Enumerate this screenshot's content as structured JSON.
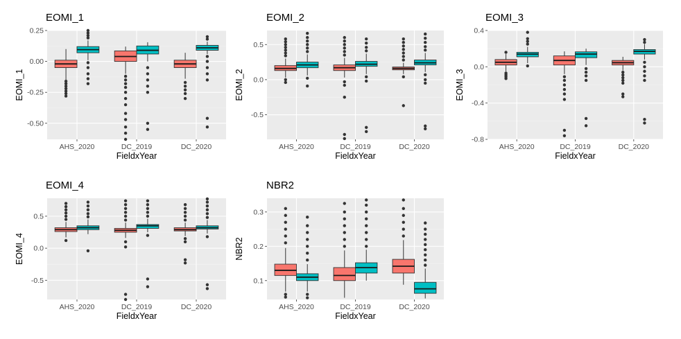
{
  "colors": {
    "panel_bg": "#ebebeb",
    "grid_major": "#ffffff",
    "grid_minor": "#f4f4f4",
    "series_1": "#f8766d",
    "series_2": "#00bfc4",
    "outline": "#333333",
    "text": "#4d4d4d",
    "title": "#000000"
  },
  "chart_data": [
    {
      "type": "boxplot",
      "title": "EOMI_1",
      "xlabel": "FieldxYear",
      "ylabel": "EOMI_1",
      "categories": [
        "AHS_2020",
        "DC_2019",
        "DC_2020"
      ],
      "ylim": [
        -0.63,
        0.25
      ],
      "yticks": [
        0.25,
        0.0,
        -0.25,
        -0.5
      ],
      "ytick_labels": [
        "0.25",
        "0.00",
        "-0.25",
        "-0.50"
      ],
      "series": [
        {
          "color": "#f8766d",
          "boxes": [
            {
              "q1": -0.05,
              "median": -0.02,
              "q3": 0.01,
              "whisker_low": -0.15,
              "whisker_high": 0.1,
              "outliers": [
                -0.28,
                -0.26,
                -0.24,
                -0.22,
                -0.2,
                -0.18,
                -0.16
              ]
            },
            {
              "q1": 0.0,
              "median": 0.04,
              "q3": 0.085,
              "whisker_low": -0.1,
              "whisker_high": 0.12,
              "outliers": [
                -0.12,
                -0.15,
                -0.18,
                -0.21,
                -0.25,
                -0.3,
                -0.35,
                -0.42,
                -0.47,
                -0.53,
                -0.58,
                -0.63
              ]
            },
            {
              "q1": -0.05,
              "median": -0.02,
              "q3": 0.01,
              "whisker_low": -0.14,
              "whisker_high": 0.07,
              "outliers": [
                -0.17,
                -0.2,
                -0.23,
                -0.26,
                -0.3
              ]
            }
          ]
        },
        {
          "color": "#00bfc4",
          "boxes": [
            {
              "q1": 0.07,
              "median": 0.095,
              "q3": 0.12,
              "whisker_low": 0.01,
              "whisker_high": 0.17,
              "outliers": [
                0.19,
                0.21,
                0.23,
                0.25,
                -0.01,
                -0.05,
                -0.1,
                -0.14,
                -0.18
              ]
            },
            {
              "q1": 0.06,
              "median": 0.09,
              "q3": 0.125,
              "whisker_low": 0.0,
              "whisker_high": 0.155,
              "outliers": [
                -0.05,
                -0.1,
                -0.15,
                -0.2,
                -0.25,
                -0.5,
                -0.55
              ]
            },
            {
              "q1": 0.09,
              "median": 0.11,
              "q3": 0.13,
              "whisker_low": 0.06,
              "whisker_high": 0.16,
              "outliers": [
                0.18,
                0.2,
                0.04,
                0.0,
                -0.05,
                -0.1,
                -0.15,
                -0.46,
                -0.53
              ]
            }
          ]
        }
      ]
    },
    {
      "type": "boxplot",
      "title": "EOMI_2",
      "xlabel": "FieldxYear",
      "ylabel": "EOMI_2",
      "categories": [
        "AHS_2020",
        "DC_2019",
        "DC_2020"
      ],
      "ylim": [
        -0.85,
        0.7
      ],
      "yticks": [
        0.5,
        0.0,
        -0.5
      ],
      "ytick_labels": [
        "0.5",
        "0.0",
        "-0.5"
      ],
      "series": [
        {
          "color": "#f8766d",
          "boxes": [
            {
              "q1": 0.13,
              "median": 0.16,
              "q3": 0.2,
              "whisker_low": 0.03,
              "whisker_high": 0.3,
              "outliers": [
                0.34,
                0.38,
                0.42,
                0.46,
                0.5,
                0.54,
                0.58,
                0.0,
                -0.04
              ]
            },
            {
              "q1": 0.13,
              "median": 0.17,
              "q3": 0.21,
              "whisker_low": 0.03,
              "whisker_high": 0.31,
              "outliers": [
                0.35,
                0.4,
                0.45,
                0.5,
                0.55,
                0.6,
                -0.03,
                -0.08,
                -0.25,
                -0.78,
                -0.84
              ]
            },
            {
              "q1": 0.14,
              "median": 0.16,
              "q3": 0.18,
              "whisker_low": 0.08,
              "whisker_high": 0.24,
              "outliers": [
                0.28,
                0.33,
                0.38,
                0.43,
                0.48,
                0.53,
                0.58,
                0.04,
                -0.37
              ]
            }
          ]
        },
        {
          "color": "#00bfc4",
          "boxes": [
            {
              "q1": 0.17,
              "median": 0.21,
              "q3": 0.25,
              "whisker_low": 0.06,
              "whisker_high": 0.36,
              "outliers": [
                0.4,
                0.45,
                0.5,
                0.55,
                0.6,
                0.66,
                0.02,
                -0.09
              ]
            },
            {
              "q1": 0.19,
              "median": 0.22,
              "q3": 0.26,
              "whisker_low": 0.08,
              "whisker_high": 0.37,
              "outliers": [
                0.41,
                0.46,
                0.52,
                0.58,
                0.04,
                -0.02,
                -0.68,
                -0.74
              ]
            },
            {
              "q1": 0.21,
              "median": 0.24,
              "q3": 0.28,
              "whisker_low": 0.11,
              "whisker_high": 0.38,
              "outliers": [
                0.42,
                0.47,
                0.53,
                0.59,
                0.65,
                0.07,
                0.0,
                -0.05,
                -0.66,
                -0.7
              ]
            }
          ]
        }
      ]
    },
    {
      "type": "boxplot",
      "title": "EOMI_3",
      "xlabel": "FieldxYear",
      "ylabel": "EOMI_3",
      "categories": [
        "AHS_2020",
        "DC_2019",
        "DC_2020"
      ],
      "ylim": [
        -0.8,
        0.4
      ],
      "yticks": [
        0.4,
        0.0,
        -0.4,
        -0.8
      ],
      "ytick_labels": [
        "0.4",
        "0.0",
        "-0.4",
        "-0.8"
      ],
      "series": [
        {
          "color": "#f8766d",
          "boxes": [
            {
              "q1": 0.02,
              "median": 0.05,
              "q3": 0.08,
              "whisker_low": -0.05,
              "whisker_high": 0.14,
              "outliers": [
                0.16,
                -0.07,
                -0.09,
                -0.11,
                -0.13
              ]
            },
            {
              "q1": 0.02,
              "median": 0.07,
              "q3": 0.12,
              "whisker_low": -0.08,
              "whisker_high": 0.17,
              "outliers": [
                -0.11,
                -0.15,
                -0.2,
                -0.25,
                -0.3,
                -0.36,
                -0.7,
                -0.76
              ]
            },
            {
              "q1": 0.02,
              "median": 0.045,
              "q3": 0.07,
              "whisker_low": -0.04,
              "whisker_high": 0.11,
              "outliers": [
                -0.06,
                -0.09,
                -0.12,
                -0.15,
                -0.18,
                -0.3,
                -0.33
              ]
            }
          ]
        },
        {
          "color": "#00bfc4",
          "boxes": [
            {
              "q1": 0.11,
              "median": 0.14,
              "q3": 0.16,
              "whisker_low": 0.04,
              "whisker_high": 0.22,
              "outliers": [
                0.25,
                0.28,
                0.31,
                0.38,
                0.01
              ]
            },
            {
              "q1": 0.1,
              "median": 0.14,
              "q3": 0.165,
              "whisker_low": 0.02,
              "whisker_high": 0.2,
              "outliers": [
                -0.02,
                -0.06,
                -0.1,
                -0.15,
                -0.57,
                -0.65
              ]
            },
            {
              "q1": 0.14,
              "median": 0.17,
              "q3": 0.19,
              "whisker_low": 0.08,
              "whisker_high": 0.25,
              "outliers": [
                0.27,
                0.3,
                0.05,
                0.0,
                -0.05,
                -0.1,
                -0.15,
                -0.58,
                -0.62
              ]
            }
          ]
        }
      ]
    },
    {
      "type": "boxplot",
      "title": "EOMI_4",
      "xlabel": "FieldxYear",
      "ylabel": "EOMI_4",
      "categories": [
        "AHS_2020",
        "DC_2019",
        "DC_2020"
      ],
      "ylim": [
        -0.8,
        0.78
      ],
      "yticks": [
        0.5,
        0.0,
        -0.5
      ],
      "ytick_labels": [
        "0.5",
        "0.0",
        "-0.5"
      ],
      "series": [
        {
          "color": "#f8766d",
          "boxes": [
            {
              "q1": 0.26,
              "median": 0.29,
              "q3": 0.32,
              "whisker_low": 0.17,
              "whisker_high": 0.41,
              "outliers": [
                0.45,
                0.5,
                0.55,
                0.6,
                0.65,
                0.7,
                0.12
              ]
            },
            {
              "q1": 0.25,
              "median": 0.28,
              "q3": 0.31,
              "whisker_low": 0.16,
              "whisker_high": 0.4,
              "outliers": [
                0.44,
                0.5,
                0.56,
                0.62,
                0.68,
                0.74,
                0.1,
                0.02,
                -0.72,
                -0.8
              ]
            },
            {
              "q1": 0.27,
              "median": 0.29,
              "q3": 0.32,
              "whisker_low": 0.19,
              "whisker_high": 0.4,
              "outliers": [
                0.44,
                0.5,
                0.56,
                0.62,
                0.68,
                0.15,
                0.1,
                -0.18,
                -0.23
              ]
            }
          ]
        },
        {
          "color": "#00bfc4",
          "boxes": [
            {
              "q1": 0.29,
              "median": 0.32,
              "q3": 0.35,
              "whisker_low": 0.22,
              "whisker_high": 0.45,
              "outliers": [
                0.49,
                0.54,
                0.6,
                0.66,
                0.72,
                -0.04
              ]
            },
            {
              "q1": 0.31,
              "median": 0.35,
              "q3": 0.37,
              "whisker_low": 0.25,
              "whisker_high": 0.46,
              "outliers": [
                0.5,
                0.56,
                0.62,
                0.68,
                0.74,
                0.2,
                -0.48,
                -0.6
              ]
            },
            {
              "q1": 0.3,
              "median": 0.32,
              "q3": 0.35,
              "whisker_low": 0.23,
              "whisker_high": 0.44,
              "outliers": [
                0.48,
                0.54,
                0.6,
                0.66,
                0.72,
                0.77,
                0.18,
                -0.57,
                -0.63
              ]
            }
          ]
        }
      ]
    },
    {
      "type": "boxplot",
      "title": "NBR2",
      "xlabel": "FieldxYear",
      "ylabel": "NBR2",
      "categories": [
        "AHS_2020",
        "DC_2019",
        "DC_2020"
      ],
      "ylim": [
        0.045,
        0.34
      ],
      "yticks": [
        0.3,
        0.2,
        0.1
      ],
      "ytick_labels": [
        "0.3",
        "0.2",
        "0.1"
      ],
      "series": [
        {
          "color": "#f8766d",
          "boxes": [
            {
              "q1": 0.115,
              "median": 0.13,
              "q3": 0.148,
              "whisker_low": 0.068,
              "whisker_high": 0.195,
              "outliers": [
                0.21,
                0.23,
                0.25,
                0.27,
                0.29,
                0.31,
                0.06,
                0.052
              ]
            },
            {
              "q1": 0.1,
              "median": 0.115,
              "q3": 0.138,
              "whisker_low": 0.05,
              "whisker_high": 0.188,
              "outliers": [
                0.2,
                0.22,
                0.24,
                0.26,
                0.28,
                0.3,
                0.325
              ]
            },
            {
              "q1": 0.122,
              "median": 0.142,
              "q3": 0.162,
              "whisker_low": 0.088,
              "whisker_high": 0.218,
              "outliers": [
                0.23,
                0.25,
                0.27,
                0.29,
                0.31,
                0.335
              ]
            }
          ]
        },
        {
          "color": "#00bfc4",
          "boxes": [
            {
              "q1": 0.1,
              "median": 0.11,
              "q3": 0.12,
              "whisker_low": 0.068,
              "whisker_high": 0.148,
              "outliers": [
                0.16,
                0.18,
                0.2,
                0.22,
                0.24,
                0.26,
                0.285,
                0.06,
                0.05
              ]
            },
            {
              "q1": 0.122,
              "median": 0.138,
              "q3": 0.152,
              "whisker_low": 0.1,
              "whisker_high": 0.19,
              "outliers": [
                0.2,
                0.22,
                0.24,
                0.26,
                0.28,
                0.3,
                0.32,
                0.335
              ]
            },
            {
              "q1": 0.063,
              "median": 0.076,
              "q3": 0.095,
              "whisker_low": 0.048,
              "whisker_high": 0.135,
              "outliers": [
                0.145,
                0.16,
                0.175,
                0.19,
                0.205,
                0.22,
                0.235,
                0.25,
                0.268
              ]
            }
          ]
        }
      ]
    }
  ]
}
